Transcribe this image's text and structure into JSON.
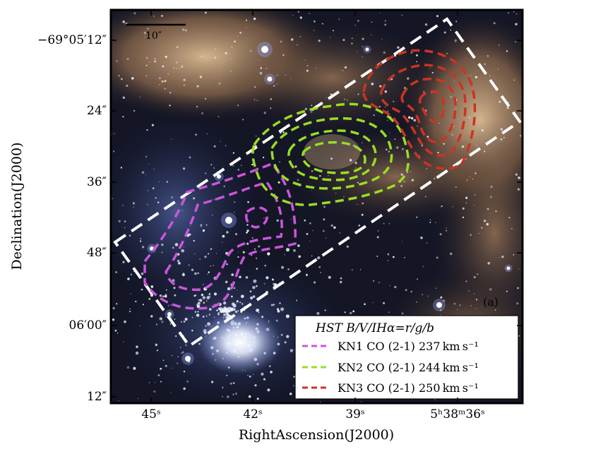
{
  "axes": {
    "x_title": "RightAscension(J2000)",
    "y_title": "Declination(J2000)",
    "y_ticks": [
      "−69°05′12″",
      "24″",
      "36″",
      "48″",
      "06′00″",
      "12″"
    ],
    "x_ticks": [
      "45ˢ",
      "42ˢ",
      "39ˢ",
      "5ʰ38ᵐ36ˢ"
    ]
  },
  "image": {
    "panel_label": "(a)",
    "scale_bar_label": "10″"
  },
  "legend": {
    "title": "HST B/V/IHα=r/g/b",
    "entries": [
      {
        "label": "KN1 CO (2-1) 237 km s⁻¹",
        "color": "#cc55dd"
      },
      {
        "label": "KN2 CO (2-1) 244 km s⁻¹",
        "color": "#99dd22"
      },
      {
        "label": "KN3 CO (2-1) 250 km s⁻¹",
        "color": "#cc3322"
      }
    ]
  },
  "colors": {
    "box": "#ffffff",
    "sky_dark": "#0b1020",
    "nebula": "#c79a66"
  }
}
